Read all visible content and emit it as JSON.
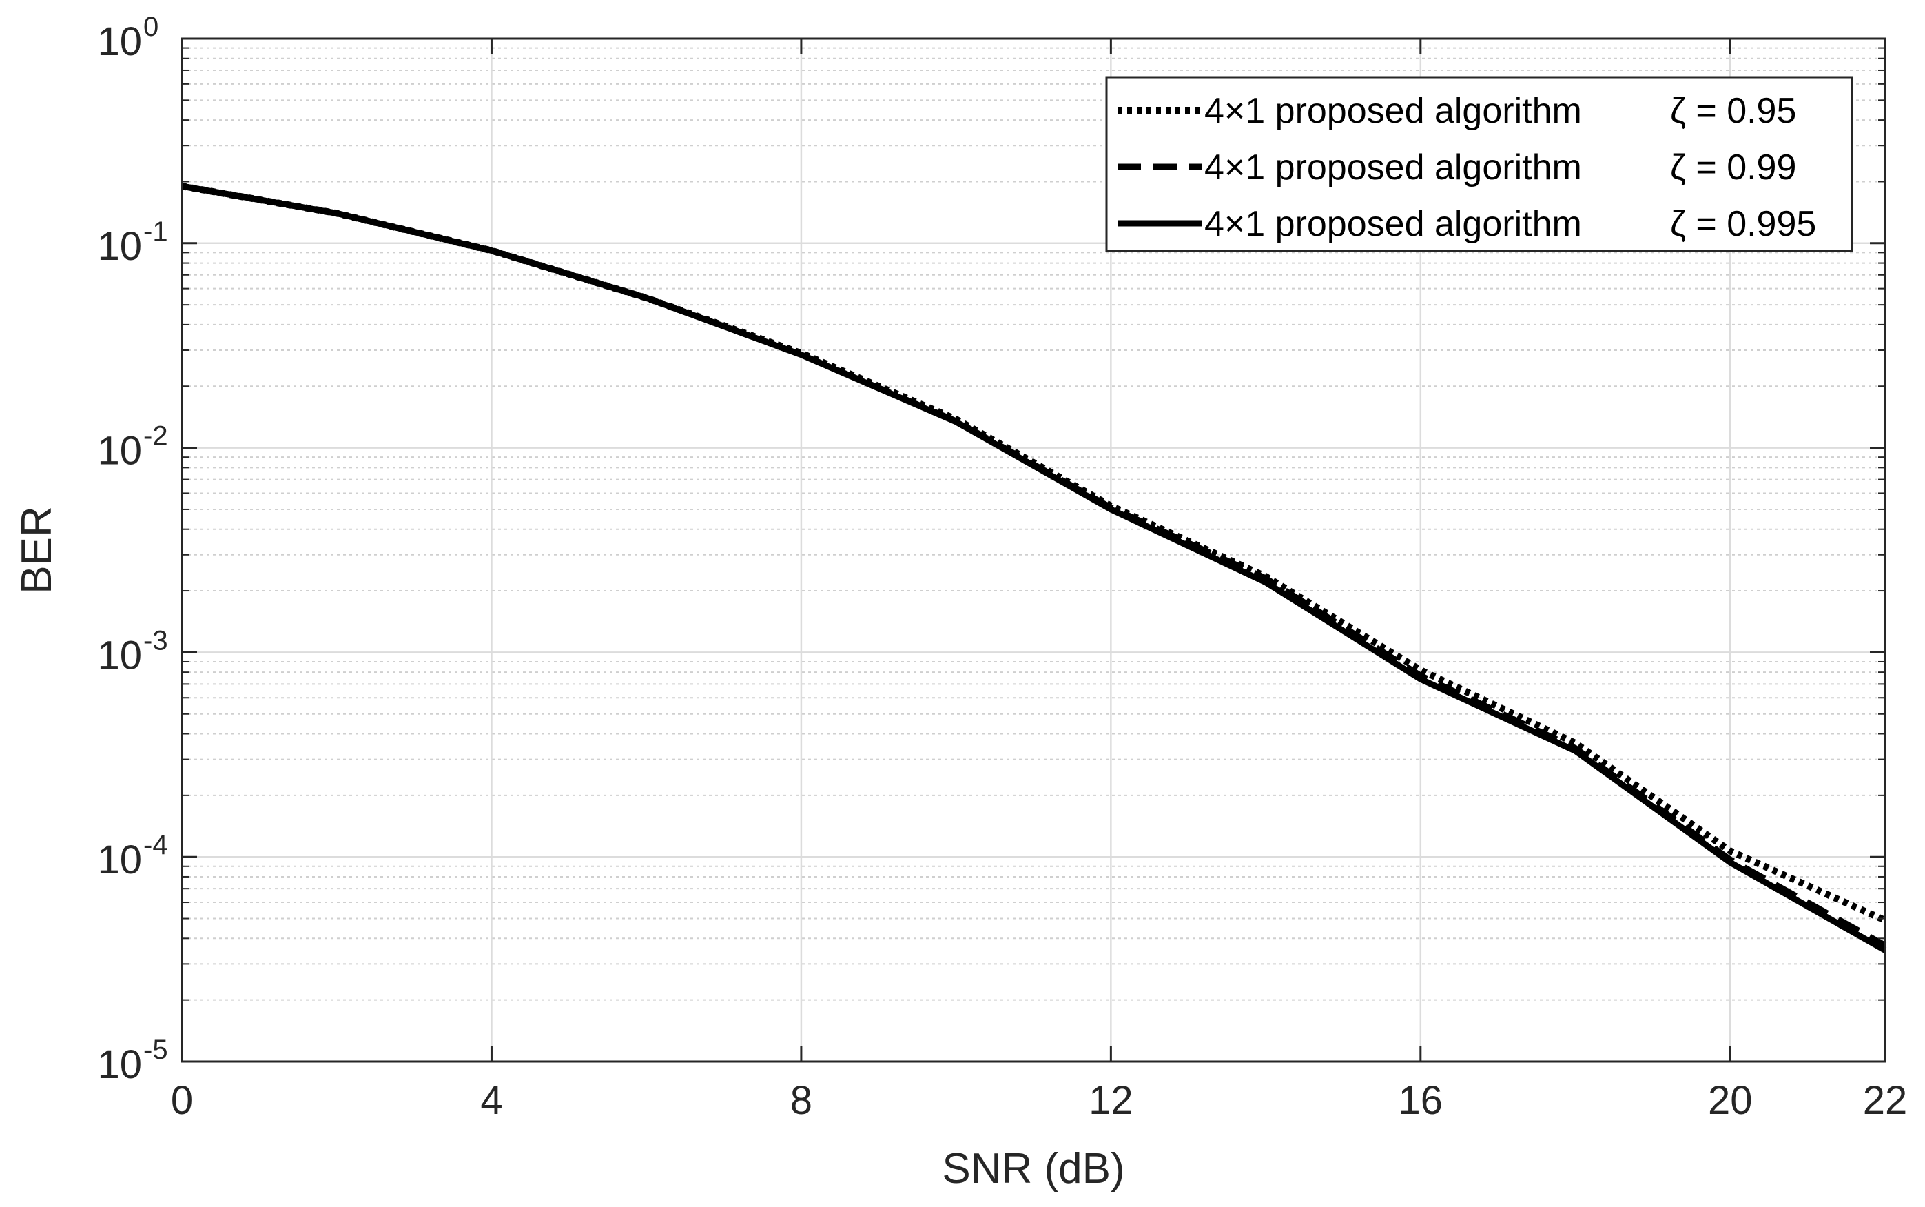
{
  "chart_data": {
    "type": "line",
    "title": "",
    "xlabel": "SNR (dB)",
    "ylabel": "BER",
    "xlim": [
      0,
      22
    ],
    "ylim": [
      1e-05,
      1
    ],
    "yscale": "log",
    "grid": true,
    "minor_grid": true,
    "legend_position": "top-right",
    "x_ticks": [
      0,
      4,
      8,
      12,
      16,
      20,
      22
    ],
    "x_tick_labels": [
      "0",
      "4",
      "8",
      "12",
      "16",
      "20",
      "22"
    ],
    "y_ticks": [
      {
        "value": 1.0,
        "base": "10",
        "exp": "0"
      },
      {
        "value": 0.1,
        "base": "10",
        "exp": "-1"
      },
      {
        "value": 0.01,
        "base": "10",
        "exp": "-2"
      },
      {
        "value": 0.001,
        "base": "10",
        "exp": "-3"
      },
      {
        "value": 0.0001,
        "base": "10",
        "exp": "-4"
      },
      {
        "value": 1e-05,
        "base": "10",
        "exp": "-5"
      }
    ],
    "x": [
      0,
      2,
      4,
      6,
      8,
      10,
      12,
      14,
      16,
      18,
      20,
      22
    ],
    "series": [
      {
        "label_main": "4×1 proposed algorithm",
        "label_param": "ζ = 0.95",
        "line_style": "dotted",
        "color": "#000000",
        "values": [
          0.19,
          0.14,
          0.092,
          0.054,
          0.029,
          0.0138,
          0.0052,
          0.00235,
          0.00082,
          0.00036,
          0.000107,
          4.9e-05
        ]
      },
      {
        "label_main": "4×1 proposed algorithm",
        "label_param": "ζ = 0.99",
        "line_style": "dashed",
        "color": "#000000",
        "values": [
          0.19,
          0.14,
          0.092,
          0.054,
          0.0285,
          0.0135,
          0.0051,
          0.0023,
          0.00077,
          0.00034,
          9.7e-05,
          3.7e-05
        ]
      },
      {
        "label_main": "4×1 proposed algorithm",
        "label_param": "ζ = 0.995",
        "line_style": "solid",
        "color": "#000000",
        "values": [
          0.19,
          0.14,
          0.092,
          0.054,
          0.0285,
          0.0134,
          0.005,
          0.0022,
          0.00074,
          0.00033,
          9.4e-05,
          3.5e-05
        ]
      }
    ]
  }
}
